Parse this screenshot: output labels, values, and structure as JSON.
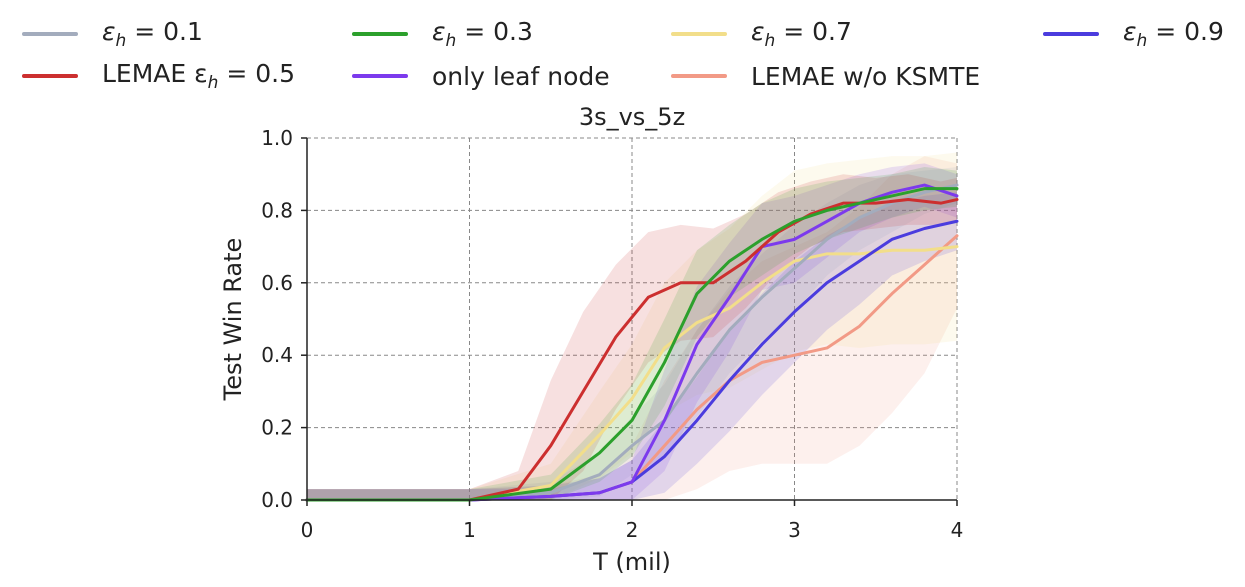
{
  "legend": [
    {
      "series": "eps01",
      "label": "ε",
      "sub": "h",
      "tail": " = 0.1"
    },
    {
      "series": "eps03",
      "label": "ε",
      "sub": "h",
      "tail": " = 0.3"
    },
    {
      "series": "eps07",
      "label": "ε",
      "sub": "h",
      "tail": " = 0.7"
    },
    {
      "series": "eps09",
      "label": "ε",
      "sub": "h",
      "tail": " = 0.9"
    },
    {
      "series": "lemae",
      "label": "LEMAE ε",
      "sub": "h",
      "tail": " = 0.5"
    },
    {
      "series": "leaf",
      "label": "only leaf node",
      "sub": "",
      "tail": ""
    },
    {
      "series": "woksmte",
      "label": "LEMAE w/o KSMTE",
      "sub": "",
      "tail": ""
    }
  ],
  "chart_data": {
    "type": "line",
    "title": "3s_vs_5z",
    "xlabel": "T (mil)",
    "ylabel": "Test Win Rate",
    "xlim": [
      0,
      4
    ],
    "ylim": [
      0,
      1.0
    ],
    "xticks": [
      0,
      1,
      2,
      3,
      4
    ],
    "yticks": [
      0.0,
      0.2,
      0.4,
      0.6,
      0.8,
      1.0
    ],
    "grid": true,
    "legend_position": "top",
    "series": [
      {
        "id": "eps01",
        "name": "ε_h = 0.1",
        "color": "#a3acbd",
        "x": [
          0,
          1.0,
          1.5,
          1.8,
          2.0,
          2.2,
          2.4,
          2.6,
          2.8,
          3.0,
          3.2,
          3.4,
          3.6,
          3.8,
          4.0
        ],
        "y": [
          0,
          0,
          0.02,
          0.07,
          0.15,
          0.22,
          0.35,
          0.47,
          0.56,
          0.64,
          0.72,
          0.78,
          0.82,
          0.85,
          0.87
        ],
        "band": [
          0.03,
          0.03,
          0.03,
          0.06,
          0.08,
          0.1,
          0.12,
          0.12,
          0.12,
          0.12,
          0.1,
          0.09,
          0.08,
          0.06,
          0.05
        ]
      },
      {
        "id": "eps03",
        "name": "ε_h = 0.3",
        "color": "#2ca02c",
        "x": [
          0,
          1.0,
          1.5,
          1.8,
          2.0,
          2.2,
          2.4,
          2.6,
          2.8,
          3.0,
          3.2,
          3.4,
          3.6,
          3.8,
          4.0
        ],
        "y": [
          0,
          0,
          0.03,
          0.13,
          0.22,
          0.38,
          0.57,
          0.66,
          0.72,
          0.77,
          0.8,
          0.82,
          0.84,
          0.86,
          0.86
        ],
        "band": [
          0.03,
          0.03,
          0.04,
          0.08,
          0.1,
          0.12,
          0.12,
          0.1,
          0.1,
          0.09,
          0.08,
          0.07,
          0.06,
          0.06,
          0.05
        ]
      },
      {
        "id": "eps07",
        "name": "ε_h = 0.7",
        "color": "#f2de8a",
        "x": [
          0,
          1.0,
          1.5,
          1.8,
          2.0,
          2.2,
          2.4,
          2.6,
          2.8,
          3.0,
          3.2,
          3.4,
          3.6,
          3.8,
          4.0
        ],
        "y": [
          0,
          0,
          0.04,
          0.18,
          0.28,
          0.42,
          0.49,
          0.53,
          0.6,
          0.66,
          0.68,
          0.68,
          0.69,
          0.69,
          0.7
        ],
        "band": [
          0.03,
          0.03,
          0.06,
          0.12,
          0.15,
          0.18,
          0.2,
          0.22,
          0.24,
          0.25,
          0.25,
          0.26,
          0.26,
          0.26,
          0.26
        ]
      },
      {
        "id": "eps09",
        "name": "ε_h = 0.9",
        "color": "#4b3cde",
        "x": [
          0,
          1.0,
          1.5,
          1.8,
          2.0,
          2.2,
          2.4,
          2.6,
          2.8,
          3.0,
          3.2,
          3.4,
          3.6,
          3.8,
          4.0
        ],
        "y": [
          0,
          0,
          0.01,
          0.02,
          0.05,
          0.12,
          0.22,
          0.33,
          0.43,
          0.52,
          0.6,
          0.66,
          0.72,
          0.75,
          0.77
        ],
        "band": [
          0.03,
          0.03,
          0.03,
          0.04,
          0.06,
          0.1,
          0.12,
          0.14,
          0.14,
          0.14,
          0.13,
          0.12,
          0.1,
          0.09,
          0.08
        ]
      },
      {
        "id": "lemae",
        "name": "LEMAE ε_h = 0.5",
        "color": "#cc2f2f",
        "x": [
          0,
          1.0,
          1.3,
          1.5,
          1.7,
          1.9,
          2.1,
          2.3,
          2.5,
          2.7,
          2.9,
          3.1,
          3.3,
          3.5,
          3.7,
          3.9,
          4.0
        ],
        "y": [
          0,
          0,
          0.03,
          0.15,
          0.3,
          0.45,
          0.56,
          0.6,
          0.6,
          0.66,
          0.74,
          0.79,
          0.82,
          0.82,
          0.83,
          0.82,
          0.83
        ],
        "band": [
          0.03,
          0.03,
          0.05,
          0.18,
          0.22,
          0.2,
          0.18,
          0.16,
          0.15,
          0.13,
          0.11,
          0.09,
          0.08,
          0.07,
          0.07,
          0.06,
          0.06
        ]
      },
      {
        "id": "leaf",
        "name": "only leaf node",
        "color": "#7c3aed",
        "x": [
          0,
          1.0,
          1.5,
          1.8,
          2.0,
          2.2,
          2.4,
          2.6,
          2.8,
          3.0,
          3.2,
          3.4,
          3.6,
          3.8,
          4.0
        ],
        "y": [
          0,
          0,
          0.01,
          0.02,
          0.05,
          0.22,
          0.43,
          0.56,
          0.7,
          0.72,
          0.77,
          0.82,
          0.85,
          0.87,
          0.84
        ],
        "band": [
          0.03,
          0.03,
          0.02,
          0.04,
          0.06,
          0.14,
          0.16,
          0.15,
          0.12,
          0.12,
          0.1,
          0.08,
          0.07,
          0.06,
          0.06
        ]
      },
      {
        "id": "woksmte",
        "name": "LEMAE w/o KSMTE",
        "color": "#f29a86",
        "x": [
          0,
          1.0,
          1.5,
          1.8,
          2.0,
          2.2,
          2.4,
          2.6,
          2.8,
          3.0,
          3.2,
          3.4,
          3.6,
          3.8,
          4.0
        ],
        "y": [
          0,
          0,
          0.01,
          0.02,
          0.05,
          0.15,
          0.25,
          0.33,
          0.38,
          0.4,
          0.42,
          0.48,
          0.57,
          0.65,
          0.73
        ],
        "band": [
          0.03,
          0.03,
          0.03,
          0.05,
          0.1,
          0.18,
          0.22,
          0.25,
          0.28,
          0.3,
          0.32,
          0.33,
          0.33,
          0.3,
          0.2
        ]
      }
    ]
  }
}
